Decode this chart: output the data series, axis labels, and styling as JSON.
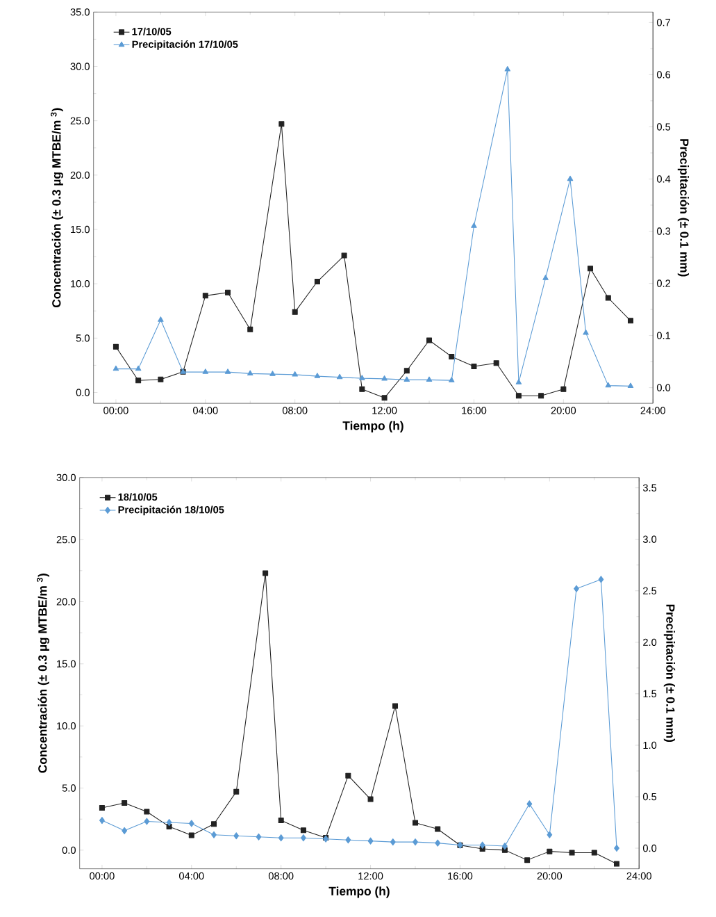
{
  "chart_data": [
    {
      "type": "line",
      "xlabel": "Tiempo (h)",
      "ylabel": "Concentración (± 0.3 µg MTBE/m $^{3}$)",
      "y2label": "Precipitación (± 0.1 mm)",
      "xlim": [
        -1,
        24
      ],
      "xticks": [
        {
          "value": 0,
          "label": "00:00"
        },
        {
          "value": 4,
          "label": "04:00"
        },
        {
          "value": 8,
          "label": "08:00"
        },
        {
          "value": 12,
          "label": "12:00"
        },
        {
          "value": 16,
          "label": "16:00"
        },
        {
          "value": 20,
          "label": "20:00"
        },
        {
          "value": 24,
          "label": "24:00"
        }
      ],
      "ylim": [
        -1,
        35
      ],
      "yticks": [
        {
          "value": 0,
          "label": "0.0"
        },
        {
          "value": 5,
          "label": "5.0"
        },
        {
          "value": 10,
          "label": "10.0"
        },
        {
          "value": 15,
          "label": "15.0"
        },
        {
          "value": 20,
          "label": "20.0"
        },
        {
          "value": 25,
          "label": "25.0"
        },
        {
          "value": 30,
          "label": "30.0"
        },
        {
          "value": 35,
          "label": "35.0"
        }
      ],
      "y2lim": [
        -0.03,
        0.72
      ],
      "y2ticks": [
        {
          "value": 0,
          "label": "0.0"
        },
        {
          "value": 0.1,
          "label": "0.1"
        },
        {
          "value": 0.2,
          "label": "0.2"
        },
        {
          "value": 0.3,
          "label": "0.3"
        },
        {
          "value": 0.4,
          "label": "0.4"
        },
        {
          "value": 0.5,
          "label": "0.5"
        },
        {
          "value": 0.6,
          "label": "0.6"
        },
        {
          "value": 0.7,
          "label": "0.7"
        }
      ],
      "legend": "top left",
      "line_style": "solid",
      "series": [
        {
          "name": "17/10/05",
          "color": "#222222",
          "marker": "square",
          "x": [
            0,
            1,
            2,
            3,
            4,
            5,
            6,
            7.4,
            8,
            9,
            10.2,
            11,
            12,
            13,
            14,
            15,
            16,
            17,
            18,
            19,
            20,
            21.2,
            22,
            23
          ],
          "values": [
            4.2,
            1.1,
            1.2,
            1.9,
            8.9,
            9.2,
            5.8,
            24.7,
            7.4,
            10.2,
            12.6,
            0.3,
            -0.5,
            2.0,
            4.8,
            3.3,
            2.4,
            2.7,
            -0.3,
            -0.3,
            0.3,
            11.4,
            8.7,
            6.6
          ]
        },
        {
          "name": "Precipitación 17/10/05",
          "color": "#5b9bd5",
          "marker": "triangle",
          "axis": "y2",
          "x": [
            0,
            1,
            2,
            3,
            4,
            5,
            6,
            7,
            8,
            9,
            10,
            11,
            12,
            13,
            14,
            15,
            16,
            17.5,
            18,
            19.2,
            20.3,
            21,
            22,
            23
          ],
          "values": [
            0.036,
            0.036,
            0.13,
            0.03,
            0.03,
            0.03,
            0.027,
            0.026,
            0.025,
            0.022,
            0.02,
            0.018,
            0.017,
            0.015,
            0.015,
            0.014,
            0.31,
            0.61,
            0.01,
            0.21,
            0.4,
            0.105,
            0.004,
            0.003
          ]
        }
      ]
    },
    {
      "type": "line",
      "xlabel": "Tiempo (h)",
      "ylabel": "Concentración (± 0.3 µg MTBE/m $^{3}$)",
      "y2label": "Precipitación (± 0.1 mm)",
      "xlim": [
        -1,
        24
      ],
      "xticks": [
        {
          "value": 0,
          "label": "00:00"
        },
        {
          "value": 4,
          "label": "04:00"
        },
        {
          "value": 8,
          "label": "08:00"
        },
        {
          "value": 12,
          "label": "12:00"
        },
        {
          "value": 16,
          "label": "16:00"
        },
        {
          "value": 20,
          "label": "20:00"
        },
        {
          "value": 24,
          "label": "24:00"
        }
      ],
      "ylim": [
        -1.5,
        30
      ],
      "yticks": [
        {
          "value": 0,
          "label": "0.0"
        },
        {
          "value": 5,
          "label": "5.0"
        },
        {
          "value": 10,
          "label": "10.0"
        },
        {
          "value": 15,
          "label": "15.0"
        },
        {
          "value": 20,
          "label": "20.0"
        },
        {
          "value": 25,
          "label": "25.0"
        },
        {
          "value": 30,
          "label": "30.0"
        }
      ],
      "y2lim": [
        -0.2,
        3.6
      ],
      "y2ticks": [
        {
          "value": 0,
          "label": "0.0"
        },
        {
          "value": 0.5,
          "label": "0.5"
        },
        {
          "value": 1,
          "label": "1.0"
        },
        {
          "value": 1.5,
          "label": "1.5"
        },
        {
          "value": 2,
          "label": "2.0"
        },
        {
          "value": 2.5,
          "label": "2.5"
        },
        {
          "value": 3,
          "label": "3.0"
        },
        {
          "value": 3.5,
          "label": "3.5"
        }
      ],
      "legend": "top left",
      "line_style": "solid",
      "series": [
        {
          "name": "18/10/05",
          "color": "#222222",
          "marker": "square",
          "x": [
            0,
            1,
            2,
            3,
            4,
            5,
            6,
            7.3,
            8,
            9,
            10,
            11,
            12,
            13.1,
            14,
            15,
            16,
            17,
            18,
            19,
            20,
            21,
            22,
            23
          ],
          "values": [
            3.4,
            3.8,
            3.1,
            1.9,
            1.2,
            2.1,
            4.7,
            22.3,
            2.4,
            1.6,
            1.0,
            6.0,
            4.1,
            11.6,
            2.2,
            1.7,
            0.4,
            0.1,
            0.0,
            -0.8,
            -0.1,
            -0.2,
            -0.2,
            -1.1
          ]
        },
        {
          "name": "Precipitación 18/10/05",
          "color": "#5b9bd5",
          "marker": "diamond",
          "axis": "y2",
          "x": [
            0,
            1,
            2,
            3,
            4,
            5,
            6,
            7,
            8,
            9,
            10,
            11,
            12,
            13,
            14,
            15,
            16,
            17,
            18,
            19.1,
            20,
            21.2,
            22.3,
            23
          ],
          "values": [
            0.27,
            0.17,
            0.26,
            0.25,
            0.24,
            0.13,
            0.12,
            0.11,
            0.1,
            0.1,
            0.09,
            0.08,
            0.07,
            0.06,
            0.06,
            0.05,
            0.03,
            0.03,
            0.02,
            0.43,
            0.13,
            2.52,
            2.61,
            0.0
          ]
        }
      ]
    }
  ]
}
